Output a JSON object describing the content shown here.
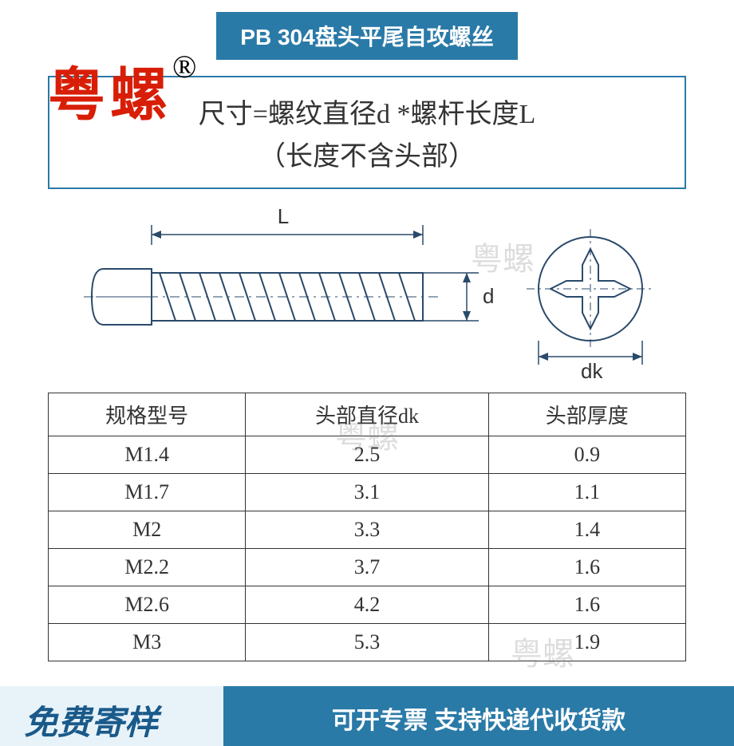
{
  "title_banner": "PB 304盘头平尾自攻螺丝",
  "brand_watermark": "粤螺",
  "registered_mark": "®",
  "formula_line1": "尺寸=螺纹直径d *螺杆长度L",
  "formula_line2": "（长度不含头部）",
  "diagram": {
    "label_L": "L",
    "label_d": "d",
    "label_dk": "dk",
    "colors": {
      "stroke": "#2a4a6a",
      "fill": "#ffffff",
      "dim_line": "#2a4a6a"
    }
  },
  "table": {
    "headers": [
      "规格型号",
      "头部直径dk",
      "头部厚度"
    ],
    "rows": [
      [
        "M1.4",
        "2.5",
        "0.9"
      ],
      [
        "M1.7",
        "3.1",
        "1.1"
      ],
      [
        "M2",
        "3.3",
        "1.4"
      ],
      [
        "M2.2",
        "3.7",
        "1.6"
      ],
      [
        "M2.6",
        "4.2",
        "1.6"
      ],
      [
        "M3",
        "5.3",
        "1.9"
      ]
    ]
  },
  "bottom_left": "免费寄样",
  "bottom_right": "可开专票 支持快递代收货款",
  "light_watermark": "粤螺"
}
